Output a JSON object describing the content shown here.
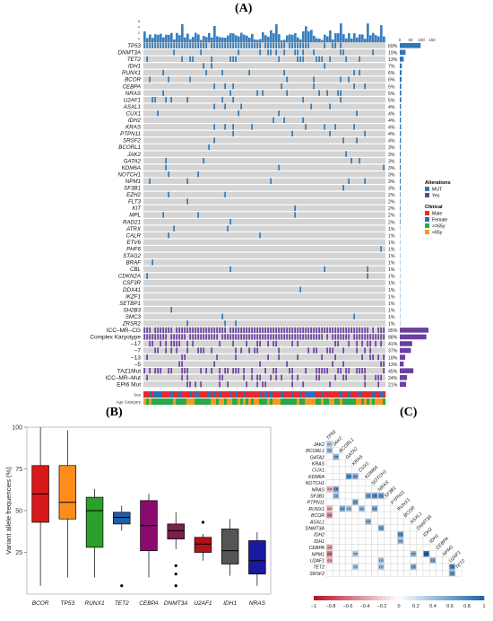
{
  "panels": {
    "A": "(A)",
    "B": "(B)",
    "C": "(C)"
  },
  "oncoprint": {
    "top_axis_ticks": [
      "0",
      "50",
      "100",
      "150"
    ],
    "genes": [
      {
        "name": "TP53",
        "pct": "69%"
      },
      {
        "name": "DNMT3A",
        "pct": "19%"
      },
      {
        "name": "TET2",
        "pct": "13%"
      },
      {
        "name": "IDH1",
        "pct": "7%"
      },
      {
        "name": "RUNX1",
        "pct": "6%"
      },
      {
        "name": "BCOR",
        "pct": "6%"
      },
      {
        "name": "CEBPA",
        "pct": "5%"
      },
      {
        "name": "NRAS",
        "pct": "5%"
      },
      {
        "name": "U2AF1",
        "pct": "5%"
      },
      {
        "name": "ASXL1",
        "pct": "4%"
      },
      {
        "name": "CUX1",
        "pct": "4%"
      },
      {
        "name": "IDH2",
        "pct": "4%"
      },
      {
        "name": "KRAS",
        "pct": "4%"
      },
      {
        "name": "PTPN11",
        "pct": "4%"
      },
      {
        "name": "SRSF2",
        "pct": "4%"
      },
      {
        "name": "BCORL1",
        "pct": "3%"
      },
      {
        "name": "JAK2",
        "pct": "3%"
      },
      {
        "name": "GATA2",
        "pct": "3%"
      },
      {
        "name": "KDM6A",
        "pct": "3%"
      },
      {
        "name": "NOTCH1",
        "pct": "3%"
      },
      {
        "name": "NPM1",
        "pct": "3%"
      },
      {
        "name": "SF3B1",
        "pct": "3%"
      },
      {
        "name": "EZH2",
        "pct": "2%"
      },
      {
        "name": "FLT3",
        "pct": "2%"
      },
      {
        "name": "KIT",
        "pct": "2%"
      },
      {
        "name": "MPL",
        "pct": "2%"
      },
      {
        "name": "RAD21",
        "pct": "2%"
      },
      {
        "name": "ATRX",
        "pct": "1%"
      },
      {
        "name": "CALR",
        "pct": "1%"
      },
      {
        "name": "ETV6",
        "pct": "1%"
      },
      {
        "name": "PHF6",
        "pct": "1%"
      },
      {
        "name": "STAG2",
        "pct": "1%"
      },
      {
        "name": "BRAF",
        "pct": "1%"
      },
      {
        "name": "CBL",
        "pct": "1%"
      },
      {
        "name": "CDKN2A",
        "pct": "1%"
      },
      {
        "name": "CSF3R",
        "pct": "1%"
      },
      {
        "name": "DDX41",
        "pct": "1%"
      },
      {
        "name": "IKZF1",
        "pct": "1%"
      },
      {
        "name": "SETBP1",
        "pct": "1%"
      },
      {
        "name": "SH2B3",
        "pct": "1%"
      },
      {
        "name": "SMC3",
        "pct": "1%"
      },
      {
        "name": "ZRSR2",
        "pct": "1%"
      }
    ],
    "features": [
      {
        "name": "ICC–MR–CG",
        "pct": "95%"
      },
      {
        "name": "Complex Karyotype",
        "pct": "88%"
      },
      {
        "name": "–17",
        "pct": "41%"
      },
      {
        "name": "–7",
        "pct": "37%"
      },
      {
        "name": "–13",
        "pct": "18%"
      },
      {
        "name": "–5",
        "pct": "13%"
      },
      {
        "name": "TAZ1Mut",
        "pct": "45%"
      },
      {
        "name": "ICC–MR–Mut",
        "pct": "24%"
      },
      {
        "name": "EPI6 Mut",
        "pct": "21%"
      }
    ],
    "clinical_rows": [
      "Sex",
      "Age Category"
    ],
    "legend": {
      "alterations_title": "Alterations",
      "alterations": [
        {
          "label": "MUT",
          "color": "#2f78b5"
        },
        {
          "label": "Yes",
          "color": "#6b3fa0"
        }
      ],
      "clinical_title": "Clinical",
      "clinical": [
        {
          "label": "Male",
          "color": "#e8282e"
        },
        {
          "label": "Female",
          "color": "#2c6fb7"
        },
        {
          "label": ">=65y",
          "color": "#2aa84a"
        },
        {
          "label": "<65y",
          "color": "#f39a1e"
        }
      ]
    },
    "colors": {
      "empty": "#d4d4d4",
      "mut": "#2f78b5",
      "yes": "#6b3fa0",
      "bar": "#3a7fc0"
    }
  },
  "chart_data": [
    {
      "type": "box",
      "title": "",
      "ylabel": "Variant allele frequencies (%)",
      "xlabel": "",
      "ylim": [
        0,
        100
      ],
      "y_ticks": [
        25,
        50,
        75,
        100
      ],
      "categories": [
        "BCOR",
        "TP53",
        "RUNX1",
        "TET2",
        "CEBPA",
        "DNMT3A",
        "U2AF1",
        "IDH1",
        "NRAS"
      ],
      "colors": [
        "#d7191c",
        "#ff8c1a",
        "#2ca02c",
        "#1f5fa8",
        "#8b0a6e",
        "#7a1f4f",
        "#b3121b",
        "#555555",
        "#1a1aa0"
      ],
      "boxes": [
        {
          "min": 5,
          "q1": 43,
          "median": 60,
          "q3": 77,
          "max": 100,
          "outliers": []
        },
        {
          "min": 10,
          "q1": 45,
          "median": 55,
          "q3": 77,
          "max": 98,
          "outliers": []
        },
        {
          "min": 10,
          "q1": 28,
          "median": 50,
          "q3": 58,
          "max": 63,
          "outliers": []
        },
        {
          "min": 38,
          "q1": 42,
          "median": 46,
          "q3": 49,
          "max": 53,
          "outliers": [
            5
          ]
        },
        {
          "min": 10,
          "q1": 26,
          "median": 41,
          "q3": 56,
          "max": 60,
          "outliers": []
        },
        {
          "min": 27,
          "q1": 33,
          "median": 38,
          "q3": 42,
          "max": 49,
          "outliers": [
            17,
            12,
            5
          ]
        },
        {
          "min": 20,
          "q1": 25,
          "median": 30,
          "q3": 34,
          "max": 36,
          "outliers": [
            43
          ]
        },
        {
          "min": 11,
          "q1": 18,
          "median": 26,
          "q3": 39,
          "max": 45,
          "outliers": []
        },
        {
          "min": 5,
          "q1": 12,
          "median": 20,
          "q3": 32,
          "max": 37,
          "outliers": []
        }
      ]
    },
    {
      "type": "heatmap",
      "title": "",
      "genes": [
        "TP53",
        "JAK2",
        "BCORL1",
        "GATA2",
        "KRAS",
        "CUX1",
        "KDM6A",
        "NOTCH1",
        "NRAS",
        "SF3B1",
        "PTPN11",
        "RUNX1",
        "BCOR",
        "ASXL1",
        "DNMT3A",
        "IDH2",
        "IDH1",
        "CEBPA",
        "NPM1",
        "U2AF1",
        "TET2",
        "SRSF2"
      ],
      "colorbar_ticks": [
        "−1",
        "−0.8",
        "−0.6",
        "−0.4",
        "−0.2",
        "0",
        "0.2",
        "0.4",
        "0.6",
        "0.8",
        "1"
      ],
      "colorbar_colors": [
        "#b2182b",
        "#ffffff",
        "#2166ac"
      ],
      "cells": [
        {
          "r": 1,
          "c": 0,
          "v": 0.17
        },
        {
          "r": 2,
          "c": 0,
          "v": 0.2
        },
        {
          "r": 3,
          "c": 1,
          "v": 0.25
        },
        {
          "r": 6,
          "c": 3,
          "v": 0.34
        },
        {
          "r": 6,
          "c": 4,
          "v": 0.27
        },
        {
          "r": 8,
          "c": 0,
          "v": -0.16
        },
        {
          "r": 8,
          "c": 1,
          "v": 0.3
        },
        {
          "r": 9,
          "c": 1,
          "v": 0.22
        },
        {
          "r": 9,
          "c": 6,
          "v": 0.28
        },
        {
          "r": 9,
          "c": 7,
          "v": 0.34
        },
        {
          "r": 9,
          "c": 8,
          "v": 0.31
        },
        {
          "r": 10,
          "c": 4,
          "v": 0.28
        },
        {
          "r": 11,
          "c": 0,
          "v": -0.17
        },
        {
          "r": 11,
          "c": 2,
          "v": 0.27
        },
        {
          "r": 11,
          "c": 3,
          "v": 0.19
        },
        {
          "r": 11,
          "c": 5,
          "v": 0.22
        },
        {
          "r": 11,
          "c": 7,
          "v": 0.26
        },
        {
          "r": 12,
          "c": 0,
          "v": -0.24
        },
        {
          "r": 13,
          "c": 6,
          "v": 0.24
        },
        {
          "r": 14,
          "c": 8,
          "v": 0.28
        },
        {
          "r": 15,
          "c": 11,
          "v": 0.33
        },
        {
          "r": 16,
          "c": 11,
          "v": 0.22
        },
        {
          "r": 17,
          "c": 0,
          "v": -0.19
        },
        {
          "r": 18,
          "c": 0,
          "v": -0.28
        },
        {
          "r": 18,
          "c": 4,
          "v": 0.18
        },
        {
          "r": 18,
          "c": 13,
          "v": 0.24
        },
        {
          "r": 18,
          "c": 15,
          "v": 0.67
        },
        {
          "r": 19,
          "c": 0,
          "v": -0.18
        },
        {
          "r": 19,
          "c": 8,
          "v": 0.19
        },
        {
          "r": 19,
          "c": 16,
          "v": 0.26
        },
        {
          "r": 20,
          "c": 4,
          "v": 0.18
        },
        {
          "r": 20,
          "c": 8,
          "v": 0.19
        },
        {
          "r": 20,
          "c": 13,
          "v": 0.26
        },
        {
          "r": 20,
          "c": 19,
          "v": 0.36
        },
        {
          "r": 21,
          "c": 19,
          "v": 0.3
        }
      ]
    }
  ]
}
